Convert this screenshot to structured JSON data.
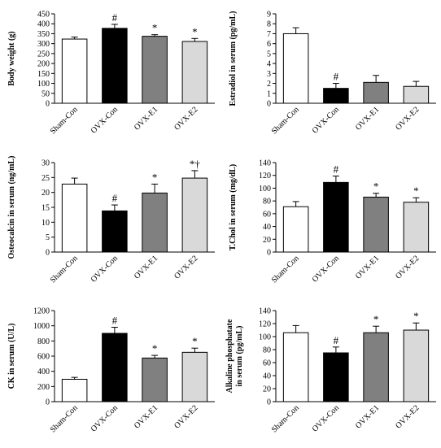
{
  "chart_data": [
    {
      "type": "bar",
      "ylabel": "Body weight (g)",
      "categories": [
        "Sham-Con",
        "OVX-Con",
        "OVX-E1",
        "OVX-E2"
      ],
      "values": [
        323,
        377,
        337,
        311
      ],
      "errors": [
        10,
        20,
        8,
        15
      ],
      "annotations": [
        "",
        "#",
        "*",
        "*"
      ],
      "ylim": [
        0,
        450
      ],
      "yticks": [
        "0",
        "50",
        "100",
        "150",
        "200",
        "250",
        "300",
        "350",
        "400",
        "450"
      ],
      "bar_colors": [
        "#ffffff",
        "#000000",
        "#808080",
        "#d9d9d9"
      ]
    },
    {
      "type": "bar",
      "ylabel": "Estradiol in serum (pg/mL)",
      "categories": [
        "Sham-Con",
        "OVX-Con",
        "OVX-E1",
        "OVX-E2"
      ],
      "values": [
        7.0,
        1.5,
        2.1,
        1.7
      ],
      "errors": [
        0.6,
        0.5,
        0.7,
        0.5
      ],
      "annotations": [
        "",
        "#",
        "",
        ""
      ],
      "ylim": [
        0,
        9
      ],
      "yticks": [
        "0",
        "1",
        "2",
        "3",
        "4",
        "5",
        "6",
        "7",
        "8",
        "9"
      ],
      "bar_colors": [
        "#ffffff",
        "#000000",
        "#808080",
        "#d9d9d9"
      ]
    },
    {
      "type": "bar",
      "ylabel": "Osteocalcin in serum (ng/mL)",
      "categories": [
        "Sham-Con",
        "OVX-Con",
        "OVX-E1",
        "OVX-E2"
      ],
      "values": [
        22.8,
        13.8,
        19.8,
        24.8
      ],
      "errors": [
        2.0,
        2.0,
        3.0,
        2.5
      ],
      "annotations": [
        "",
        "#",
        "*",
        "*†"
      ],
      "ylim": [
        0,
        30
      ],
      "yticks": [
        "0",
        "5",
        "10",
        "15",
        "20",
        "25",
        "30"
      ],
      "bar_colors": [
        "#ffffff",
        "#000000",
        "#808080",
        "#d9d9d9"
      ]
    },
    {
      "type": "bar",
      "ylabel": "T.Chol in serum (mg/dL)",
      "categories": [
        "Sham-Con",
        "OVX-Con",
        "OVX-E1",
        "OVX-E2"
      ],
      "values": [
        71,
        109,
        86,
        78
      ],
      "errors": [
        8,
        10,
        6,
        7
      ],
      "annotations": [
        "",
        "#",
        "*",
        "*"
      ],
      "ylim": [
        0,
        140
      ],
      "yticks": [
        "0",
        "20",
        "40",
        "60",
        "80",
        "100",
        "120",
        "140"
      ],
      "bar_colors": [
        "#ffffff",
        "#000000",
        "#808080",
        "#d9d9d9"
      ]
    },
    {
      "type": "bar",
      "ylabel": "CK in serum (U/L)",
      "categories": [
        "Sham-Con",
        "OVX-Con",
        "OVX-E1",
        "OVX-E2"
      ],
      "values": [
        295,
        900,
        575,
        650
      ],
      "errors": [
        25,
        80,
        35,
        55
      ],
      "annotations": [
        "",
        "#",
        "*",
        "*"
      ],
      "ylim": [
        0,
        1200
      ],
      "yticks": [
        "0",
        "200",
        "400",
        "600",
        "800",
        "1000",
        "1200"
      ],
      "bar_colors": [
        "#ffffff",
        "#000000",
        "#808080",
        "#d9d9d9"
      ]
    },
    {
      "type": "bar",
      "ylabel": "Alkaline phosphatate in serum (pg/mL)",
      "ylabel_lines": [
        "Alkaline phosphatate",
        "in serum (pg/mL)"
      ],
      "categories": [
        "Sham-Con",
        "OVX-Con",
        "OVX-E1",
        "OVX-E2"
      ],
      "values": [
        106,
        75,
        106,
        110
      ],
      "errors": [
        11,
        9,
        10,
        11
      ],
      "annotations": [
        "",
        "#",
        "*",
        "*"
      ],
      "ylim": [
        0,
        140
      ],
      "yticks": [
        "0",
        "20",
        "40",
        "60",
        "80",
        "100",
        "120",
        "140"
      ],
      "bar_colors": [
        "#ffffff",
        "#000000",
        "#808080",
        "#d9d9d9"
      ]
    }
  ]
}
